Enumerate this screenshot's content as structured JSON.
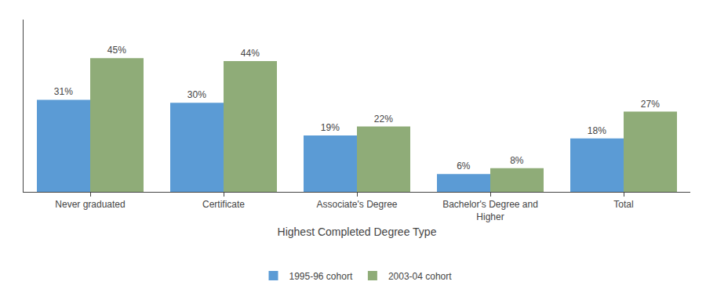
{
  "chart_data": {
    "type": "bar",
    "xlabel": "Highest Completed Degree Type",
    "categories": [
      "Never graduated",
      "Certificate",
      "Associate's Degree",
      "Bachelor's Degree and\nHigher",
      "Total"
    ],
    "series": [
      {
        "name": "1995-96 cohort",
        "color": "#5b9bd5",
        "values": [
          31,
          30,
          19,
          6,
          18
        ],
        "value_labels": [
          "31%",
          "30%",
          "19%",
          "6%",
          "18%"
        ]
      },
      {
        "name": "2003-04 cohort",
        "color": "#8fac78",
        "values": [
          45,
          44,
          22,
          8,
          27
        ],
        "value_labels": [
          "45%",
          "44%",
          "22%",
          "8%",
          "27%"
        ]
      }
    ],
    "ylim": [
      0,
      58
    ],
    "yticks": [],
    "grid": false,
    "legend": "bottom",
    "data_labels": true,
    "tick_labels": "x"
  }
}
